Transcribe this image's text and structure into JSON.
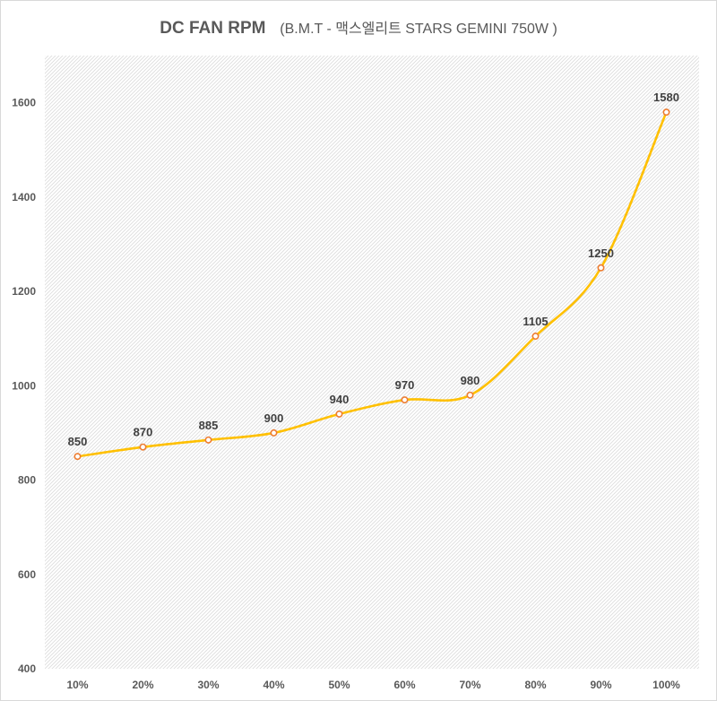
{
  "chart_data": {
    "type": "line",
    "title": "DC FAN RPM",
    "subtitle": "(B.M.T - 맥스엘리트 STARS GEMINI  750W )",
    "categories": [
      "10%",
      "20%",
      "30%",
      "40%",
      "50%",
      "60%",
      "70%",
      "80%",
      "90%",
      "100%"
    ],
    "series": [
      {
        "values": [
          850,
          870,
          885,
          900,
          940,
          970,
          980,
          1105,
          1250,
          1580
        ]
      }
    ],
    "yticks": [
      "400",
      "600",
      "800",
      "1000",
      "1200",
      "1400",
      "1600"
    ],
    "ylim": [
      400,
      1700
    ],
    "xlabel": "",
    "ylabel": "",
    "smooth": true,
    "grid": false,
    "plot_background": "hatched",
    "legend": "none"
  },
  "colors": {
    "line": "#ffc000",
    "marker_edge": "#ed7d31",
    "marker_fill": "#ffffff",
    "title": "#595959",
    "tick_text": "#595959",
    "data_label_text": "#404040",
    "hatch": "#d9d9d9"
  }
}
